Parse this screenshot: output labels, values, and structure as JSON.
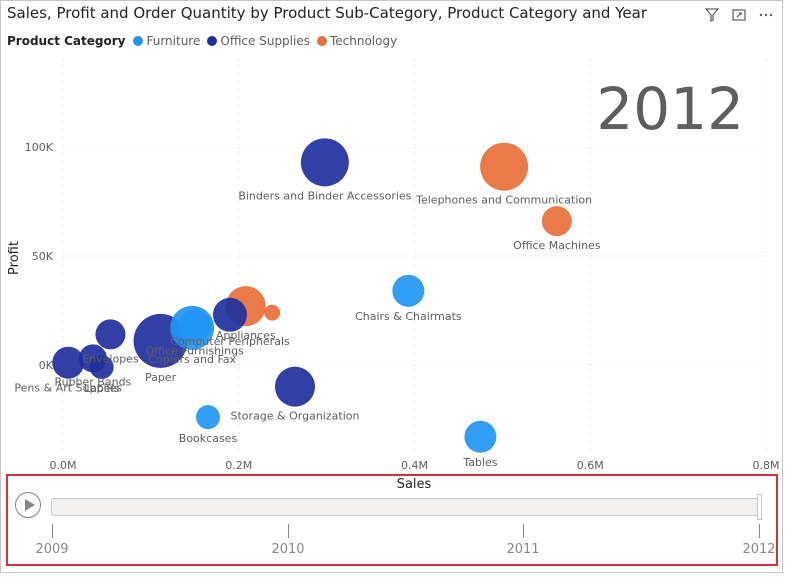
{
  "visual": {
    "title": "Sales, Profit and Order Quantity by Product Sub-Category, Product Category and Year",
    "header_icons": [
      "filter-icon",
      "focus-mode-icon",
      "more-options-icon"
    ]
  },
  "legend": {
    "title": "Product Category",
    "items": [
      {
        "label": "Furniture",
        "color": "#2196F3"
      },
      {
        "label": "Office Supplies",
        "color": "#1F2FA0"
      },
      {
        "label": "Technology",
        "color": "#E8703A"
      }
    ]
  },
  "play_axis": {
    "label": "Sales",
    "years": [
      "2009",
      "2010",
      "2011",
      "2012"
    ],
    "current_year": "2012",
    "position": 1.0
  },
  "chart_data": {
    "type": "scatter",
    "subtype": "bubble",
    "title": "Sales, Profit and Order Quantity by Product Sub-Category, Product Category and Year",
    "xlabel": "Sales",
    "ylabel": "Profit",
    "xlim": [
      0,
      800000
    ],
    "ylim": [
      -40000,
      140000
    ],
    "xticks": [
      {
        "value": 0,
        "label": "0.0M"
      },
      {
        "value": 200000,
        "label": "0.2M"
      },
      {
        "value": 400000,
        "label": "0.4M"
      },
      {
        "value": 600000,
        "label": "0.6M"
      },
      {
        "value": 800000,
        "label": "0.8M"
      }
    ],
    "yticks": [
      {
        "value": 0,
        "label": "0K"
      },
      {
        "value": 50000,
        "label": "50K"
      },
      {
        "value": 100000,
        "label": "100K"
      }
    ],
    "play_year": "2012",
    "size_measure": "Order Quantity",
    "grid": true,
    "legend_position": "top-left",
    "colors": {
      "Furniture": "#2196F3",
      "Office Supplies": "#1F2FA0",
      "Technology": "#E8703A"
    },
    "points": [
      {
        "label": "Binders and Binder Accessories",
        "category": "Office Supplies",
        "x": 298000,
        "y": 93000,
        "size": 24
      },
      {
        "label": "Telephones and Communication",
        "category": "Technology",
        "x": 502000,
        "y": 91000,
        "size": 24
      },
      {
        "label": "Office Machines",
        "category": "Technology",
        "x": 562000,
        "y": 66000,
        "size": 15
      },
      {
        "label": "Chairs & Chairmats",
        "category": "Furniture",
        "x": 393000,
        "y": 34000,
        "size": 16
      },
      {
        "label": "Appliances",
        "category": "Technology",
        "x": 208000,
        "y": 27000,
        "size": 20
      },
      {
        "label": "Copiers and Fax",
        "category": "Furniture",
        "x": 147000,
        "y": 17000,
        "size": 22
      },
      {
        "label": "Computer Peripherals",
        "category": "Office Supplies",
        "x": 190000,
        "y": 23000,
        "size": 17
      },
      {
        "label": "",
        "category": "Technology",
        "x": 238000,
        "y": 24000,
        "size": 8
      },
      {
        "label": "Envelopes",
        "category": "Office Supplies",
        "x": 54000,
        "y": 14000,
        "size": 15
      },
      {
        "label": "Rubber Bands",
        "category": "Office Supplies",
        "x": 34000,
        "y": 3000,
        "size": 14
      },
      {
        "label": "Labels",
        "category": "Office Supplies",
        "x": 44000,
        "y": -1000,
        "size": 12
      },
      {
        "label": "Paper",
        "category": "Office Supplies",
        "x": 111000,
        "y": 11000,
        "size": 27
      },
      {
        "label": "Office Furnishings",
        "category": "Furniture",
        "x": 150000,
        "y": 18000,
        "size": 16
      },
      {
        "label": "Pens & Art Supplies",
        "category": "Office Supplies",
        "x": 6000,
        "y": 1000,
        "size": 16
      },
      {
        "label": "Storage & Organization",
        "category": "Office Supplies",
        "x": 264000,
        "y": -10000,
        "size": 20
      },
      {
        "label": "Bookcases",
        "category": "Furniture",
        "x": 165000,
        "y": -24000,
        "size": 12
      },
      {
        "label": "Tables",
        "category": "Furniture",
        "x": 475000,
        "y": -33000,
        "size": 16
      }
    ]
  }
}
